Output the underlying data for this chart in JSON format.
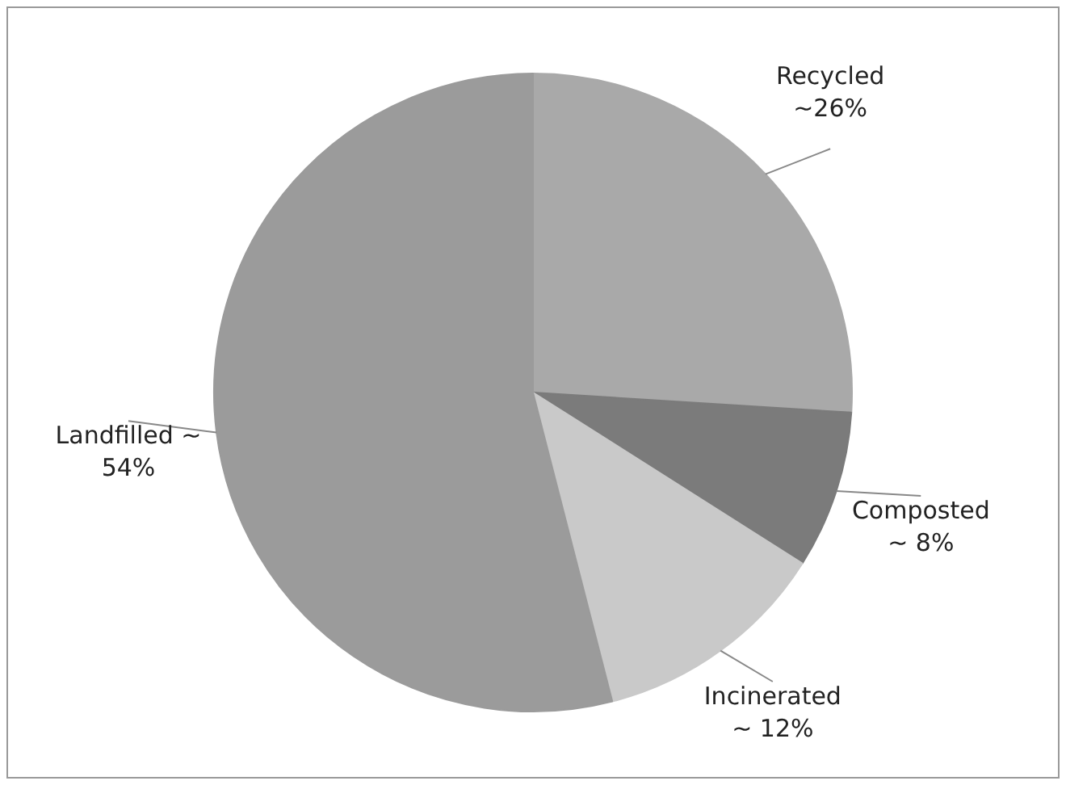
{
  "chart_data": {
    "type": "pie",
    "categories": [
      "Recycled",
      "Composted",
      "Incinerated",
      "Landfilled ~"
    ],
    "values": [
      26,
      8,
      12,
      54
    ],
    "value_labels": [
      "~26%",
      "~ 8%",
      "~ 12%",
      "54%"
    ],
    "colors": [
      "#a9a9a9",
      "#7b7b7b",
      "#c9c9c9",
      "#9b9b9b"
    ],
    "legend": false
  }
}
